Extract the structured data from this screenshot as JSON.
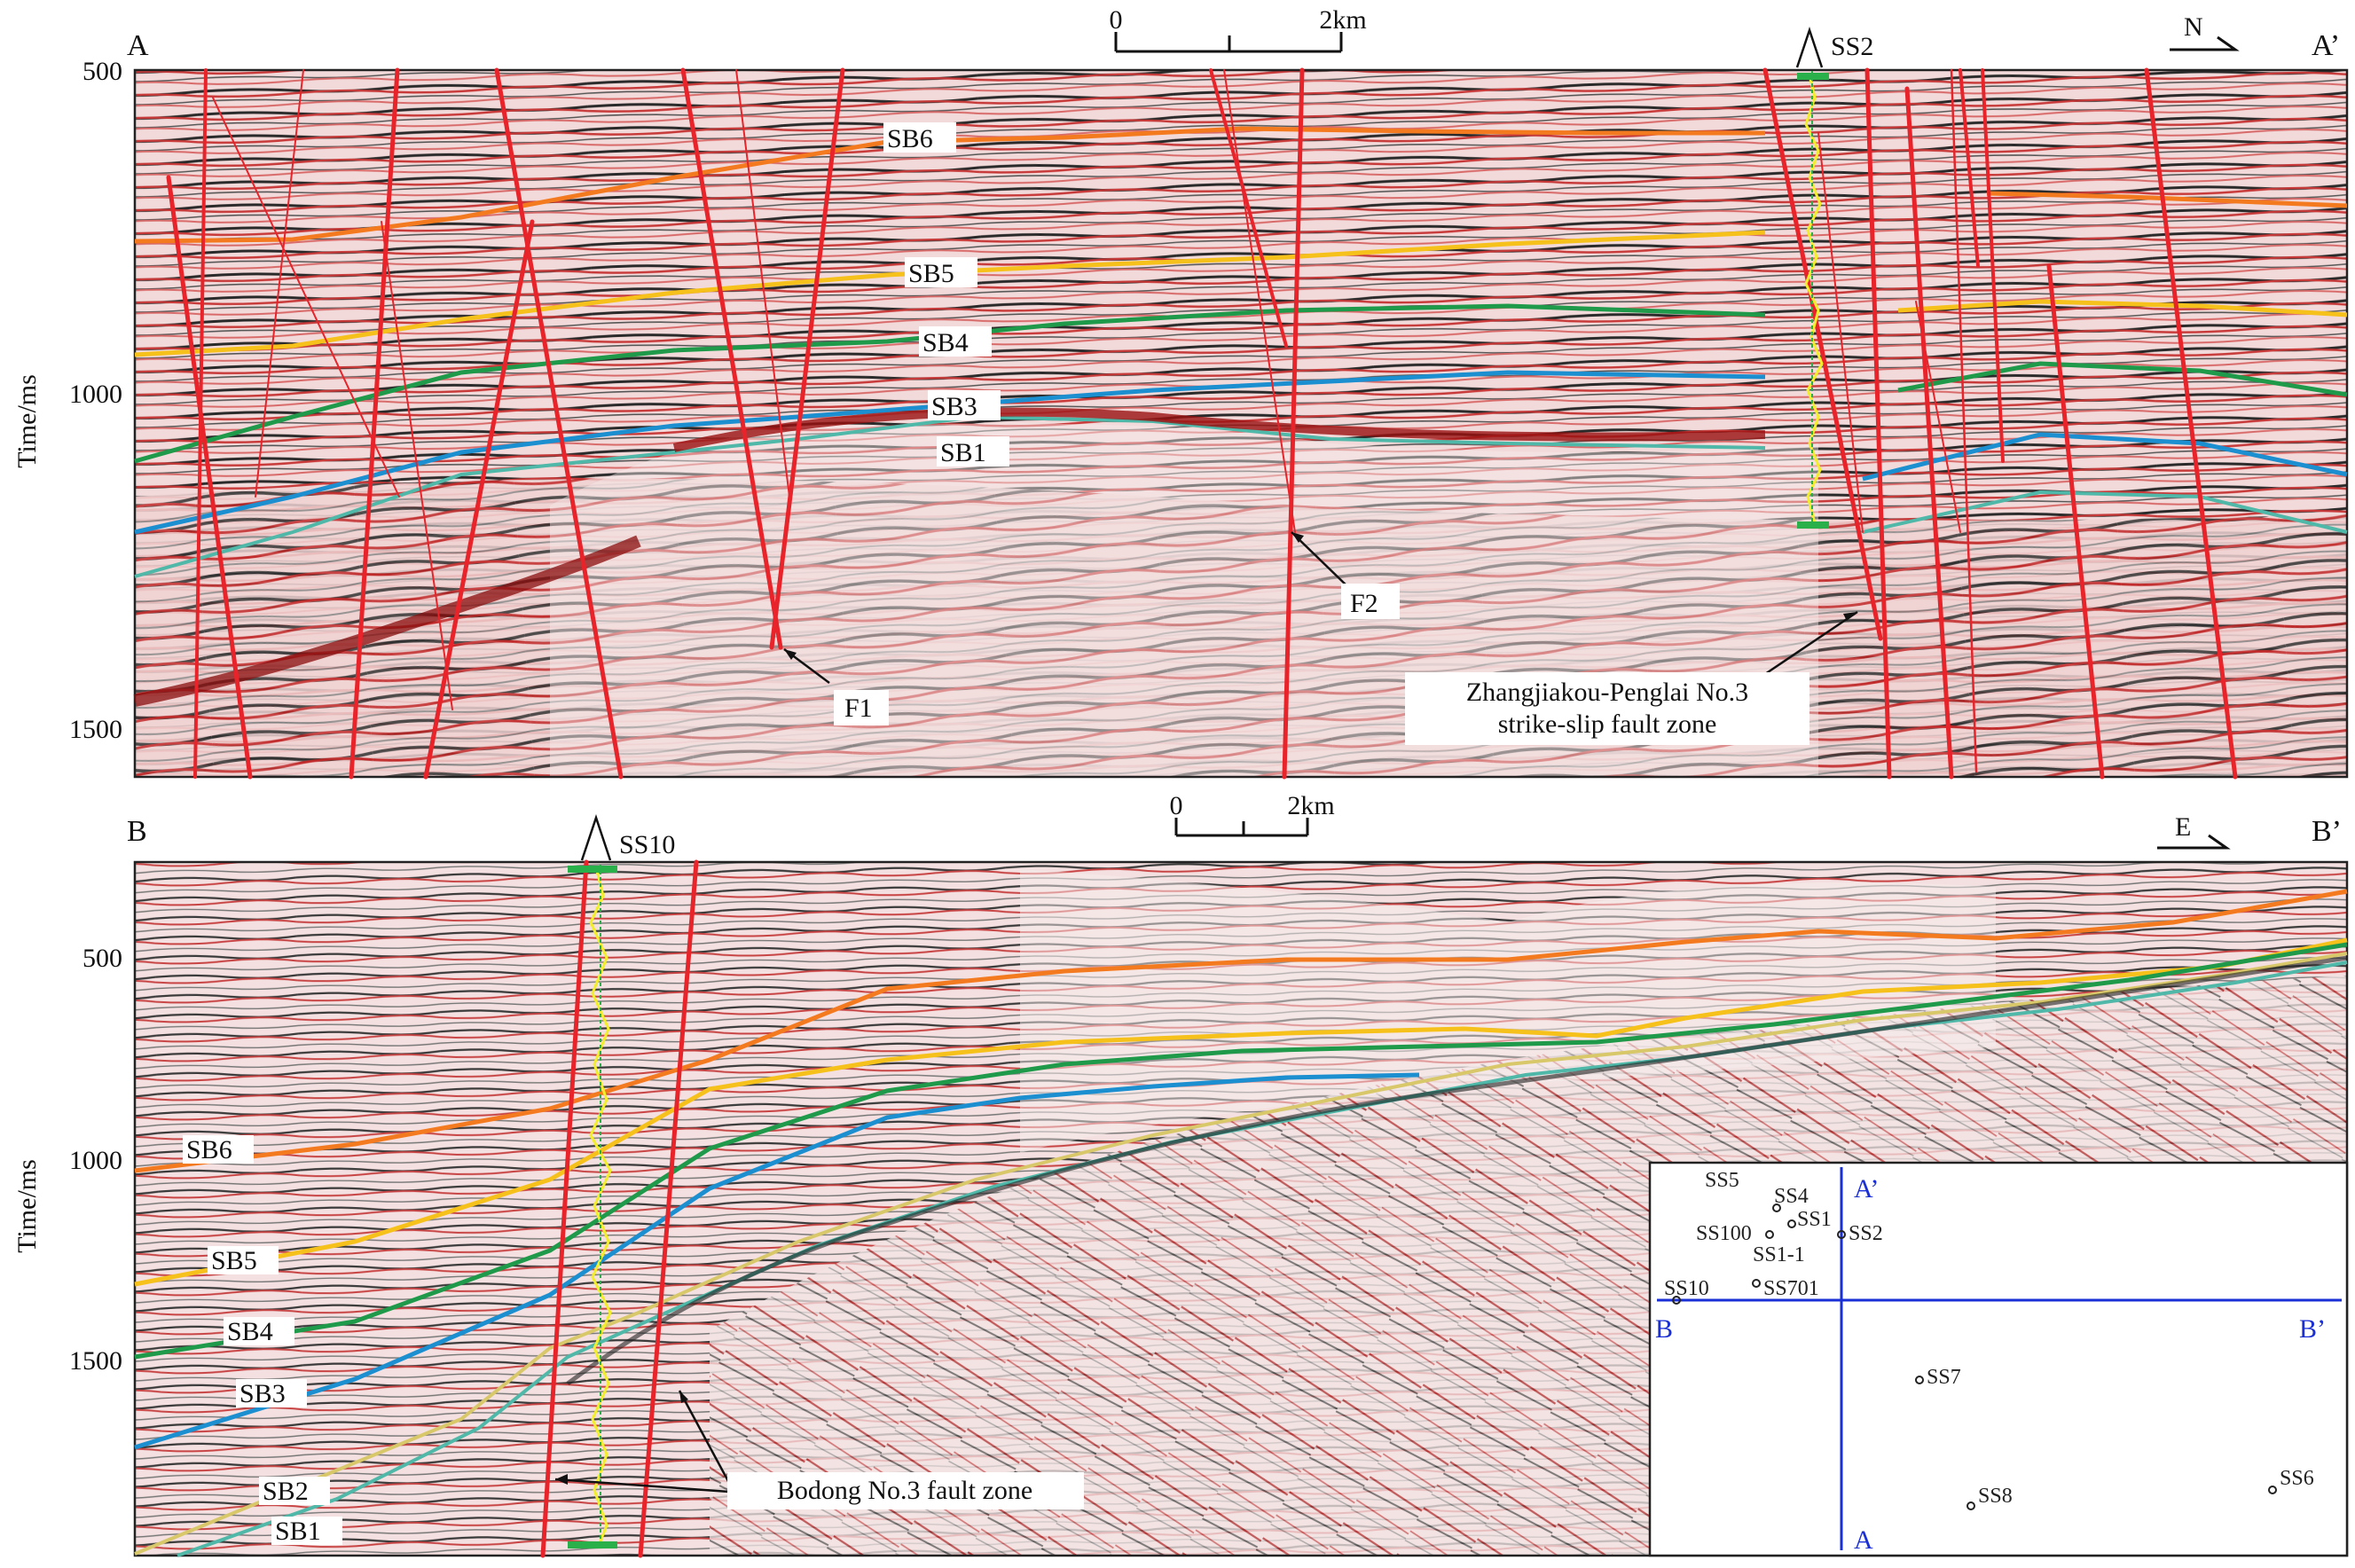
{
  "figure": {
    "top_panel": {
      "label_left": "A",
      "label_right": "A’",
      "y_axis_title": "Time/ms",
      "y_ticks": [
        "500",
        "1000",
        "1500"
      ],
      "scale_bar": {
        "start": "0",
        "end": "2km"
      },
      "north_arrow": "N",
      "well": "SS2",
      "horizons": [
        "SB6",
        "SB5",
        "SB4",
        "SB3",
        "SB1"
      ],
      "faults": [
        "F1",
        "F2"
      ],
      "fault_zone_line1": "Zhangjiakou-Penglai No.3",
      "fault_zone_line2": "strike-slip fault zone"
    },
    "bottom_panel": {
      "label_left": "B",
      "label_right": "B’",
      "y_axis_title": "Time/ms",
      "y_ticks": [
        "500",
        "1000",
        "1500"
      ],
      "scale_bar": {
        "start": "0",
        "end": "2km"
      },
      "east_arrow": "E",
      "well": "SS10",
      "horizons": [
        "SB6",
        "SB5",
        "SB4",
        "SB3",
        "SB2",
        "SB1"
      ],
      "fault_zone": "Bodong No.3 fault zone"
    },
    "inset_map": {
      "line_a_top": "A’",
      "line_a_bottom": "A",
      "line_b_left": "B",
      "line_b_right": "B’",
      "wells": [
        "SS5",
        "SS4",
        "SS1",
        "SS100",
        "SS2",
        "SS1-1",
        "SS10",
        "SS701",
        "SS7",
        "SS8",
        "SS6"
      ]
    },
    "colors": {
      "fault": "#e8232a",
      "SB6": "#f47a20",
      "SB5": "#f5c11a",
      "SB4": "#1e9a4a",
      "SB3": "#1b8fd0",
      "SB2": "#d8c86a",
      "SB1": "#4fb8a8",
      "map_lines": "#1a2fd6"
    }
  }
}
